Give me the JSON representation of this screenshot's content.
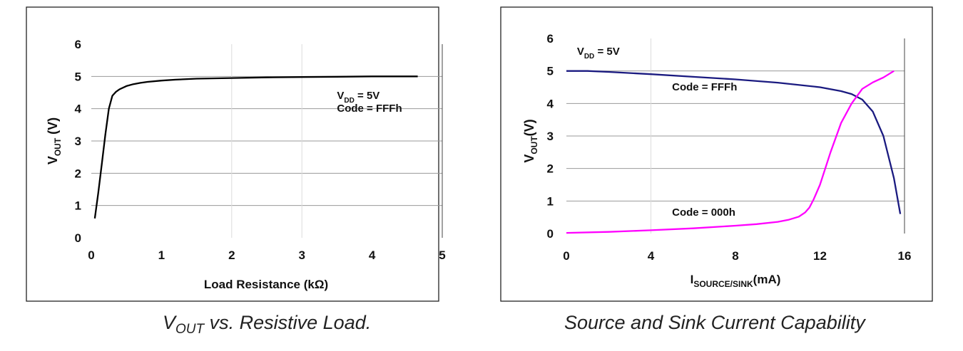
{
  "chart_data": [
    {
      "type": "line",
      "caption": {
        "main": "V",
        "sub": "OUT",
        "rest": " vs. Resistive Load."
      },
      "ylabel": {
        "main": "V",
        "sub": "OUT",
        "rest": " (V)"
      },
      "xlabel": "Load Resistance (kΩ)",
      "xlim": [
        0,
        5
      ],
      "ylim": [
        0,
        6
      ],
      "x_ticks": [
        "0",
        "1",
        "2",
        "3",
        "4",
        "5"
      ],
      "y_ticks": [
        "0",
        "1",
        "2",
        "3",
        "4",
        "5",
        "6"
      ],
      "annotations": [
        {
          "main": "V",
          "sub": "DD",
          "rest": " = 5V",
          "x": 3.5,
          "y": 4.3
        },
        {
          "main": "Code = FFFh",
          "sub": "",
          "rest": "",
          "x": 3.5,
          "y": 3.9
        }
      ],
      "series": [
        {
          "color": "#000000",
          "x": [
            0.05,
            0.1,
            0.15,
            0.2,
            0.25,
            0.3,
            0.35,
            0.4,
            0.5,
            0.6,
            0.7,
            0.8,
            1.0,
            1.2,
            1.5,
            2.0,
            2.5,
            3.0,
            3.5,
            4.0,
            4.65
          ],
          "y": [
            0.6,
            1.4,
            2.3,
            3.2,
            4.0,
            4.4,
            4.52,
            4.6,
            4.7,
            4.76,
            4.8,
            4.83,
            4.87,
            4.9,
            4.93,
            4.95,
            4.97,
            4.98,
            4.99,
            5.0,
            5.0
          ]
        }
      ]
    },
    {
      "type": "line",
      "caption": {
        "main": "Source and Sink Current Capability",
        "sub": "",
        "rest": ""
      },
      "ylabel": {
        "main": "V",
        "sub": "OUT",
        "rest": "(V)"
      },
      "xlabel": {
        "main": "I",
        "sub": "SOURCE/SINK",
        "rest": "(mA)"
      },
      "xlim": [
        0,
        16
      ],
      "ylim": [
        0,
        6
      ],
      "x_ticks": [
        "0",
        "4",
        "8",
        "12",
        "16"
      ],
      "y_ticks": [
        "0",
        "1",
        "2",
        "3",
        "4",
        "5",
        "6"
      ],
      "annotations": [
        {
          "main": "V",
          "sub": "DD",
          "rest": " = 5V",
          "x": 0.5,
          "y": 5.5
        },
        {
          "main": "Code = FFFh",
          "sub": "",
          "rest": "",
          "x": 5.0,
          "y": 4.4
        },
        {
          "main": "Code = 000h",
          "sub": "",
          "rest": "",
          "x": 5.0,
          "y": 0.55
        }
      ],
      "series": [
        {
          "name": "Code = FFFh",
          "color": "#1a1a80",
          "x": [
            0,
            1,
            2,
            4,
            6,
            8,
            10,
            12,
            13,
            13.5,
            14,
            14.5,
            15,
            15.5,
            15.8
          ],
          "y": [
            5.0,
            5.0,
            4.97,
            4.9,
            4.82,
            4.74,
            4.64,
            4.5,
            4.38,
            4.29,
            4.12,
            3.75,
            3.0,
            1.7,
            0.6
          ]
        },
        {
          "name": "Code = 000h",
          "color": "#ff00ff",
          "x": [
            0,
            2,
            4,
            6,
            8,
            9,
            10,
            10.5,
            11,
            11.3,
            11.5,
            11.7,
            12.0,
            12.5,
            13.0,
            13.5,
            14.0,
            14.5,
            15.0,
            15.5
          ],
          "y": [
            0.02,
            0.05,
            0.1,
            0.16,
            0.24,
            0.29,
            0.36,
            0.42,
            0.52,
            0.65,
            0.8,
            1.05,
            1.5,
            2.5,
            3.4,
            4.0,
            4.45,
            4.65,
            4.8,
            5.0
          ]
        }
      ]
    }
  ]
}
